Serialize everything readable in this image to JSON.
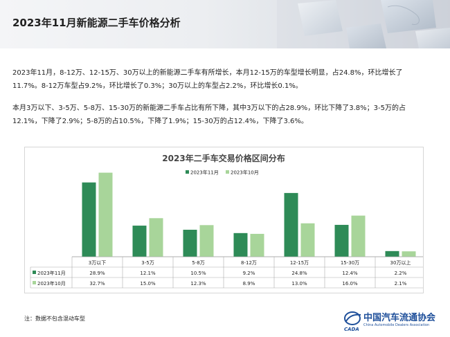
{
  "header": {
    "title": "2023年11月新能源二手车价格分析"
  },
  "paragraphs": {
    "p1_line1": "2023年11月，8-12万、12-15万、30万以上的新能源二手车有所增长，本月12-15万的车型增长明显，占24.8%，环比增长了",
    "p1_line2": "11.7%。8-12万车型占9.2%，环比增长了0.3%；30万以上的车型占2.2%，环比增长0.1%。",
    "p2_line1": "本月3万以下、3-5万、5-8万、15-30万的新能源二手车占比有所下降，其中3万以下的占28.9%，环比下降了3.8%；3-5万的占",
    "p2_line2": "12.1%，下降了2.9%；5-8万的占10.5%，下降了1.9%；15-30万的占12.4%，下降了3.6%。"
  },
  "chart_data": {
    "type": "bar",
    "title": "2023年二手车交易价格区间分布",
    "categories": [
      "3万以下",
      "3-5万",
      "5-8万",
      "8-12万",
      "12-15万",
      "15-30万",
      "30万以上"
    ],
    "series": [
      {
        "name": "2023年11月",
        "values": [
          28.9,
          12.1,
          10.5,
          9.2,
          24.8,
          12.4,
          2.2
        ],
        "labels": [
          "28.9%",
          "12.1%",
          "10.5%",
          "9.2%",
          "24.8%",
          "12.4%",
          "2.2%"
        ],
        "color": "#2e8b57"
      },
      {
        "name": "2023年10月",
        "values": [
          32.7,
          15.0,
          12.3,
          8.9,
          13.0,
          16.0,
          2.1
        ],
        "labels": [
          "32.7%",
          "15.0%",
          "12.3%",
          "8.9%",
          "13.0%",
          "16.0%",
          "2.1%"
        ],
        "color": "#a8d59a"
      }
    ],
    "ylim": [
      0,
      35
    ],
    "legend": "top-center",
    "grid": false,
    "data_table": true
  },
  "footer": {
    "note": "注：数据不包含混动车型",
    "org_name": "中国汽车流通协会",
    "org_name_en": "China Automobile Dealers Association",
    "logo_mark": "CADA"
  }
}
